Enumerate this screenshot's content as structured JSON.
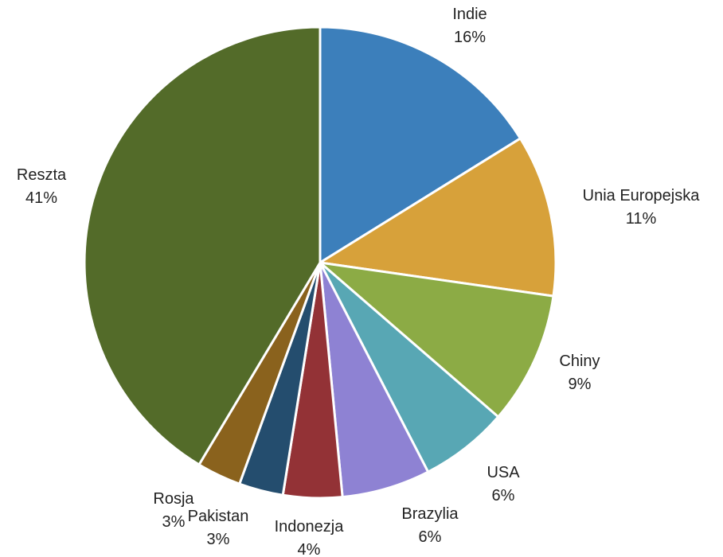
{
  "chart_data": {
    "type": "pie",
    "title": "",
    "unit": "%",
    "slices": [
      {
        "label": "Indie",
        "value": 16,
        "value_label": "16%",
        "color": "#3c7fbb"
      },
      {
        "label": "Unia Europejska",
        "value": 11,
        "value_label": "11%",
        "color": "#d7a13a"
      },
      {
        "label": "Chiny",
        "value": 9,
        "value_label": "9%",
        "color": "#8cab45"
      },
      {
        "label": "USA",
        "value": 6,
        "value_label": "6%",
        "color": "#58a7b4"
      },
      {
        "label": "Brazylia",
        "value": 6,
        "value_label": "6%",
        "color": "#8e82d3"
      },
      {
        "label": "Indonezja",
        "value": 4,
        "value_label": "4%",
        "color": "#933236"
      },
      {
        "label": "Pakistan",
        "value": 3,
        "value_label": "3%",
        "color": "#244d6e"
      },
      {
        "label": "Rosja",
        "value": 3,
        "value_label": "3%",
        "color": "#8a621d"
      },
      {
        "label": "Reszta",
        "value": 41,
        "value_label": "41%",
        "color": "#536b29"
      }
    ]
  }
}
